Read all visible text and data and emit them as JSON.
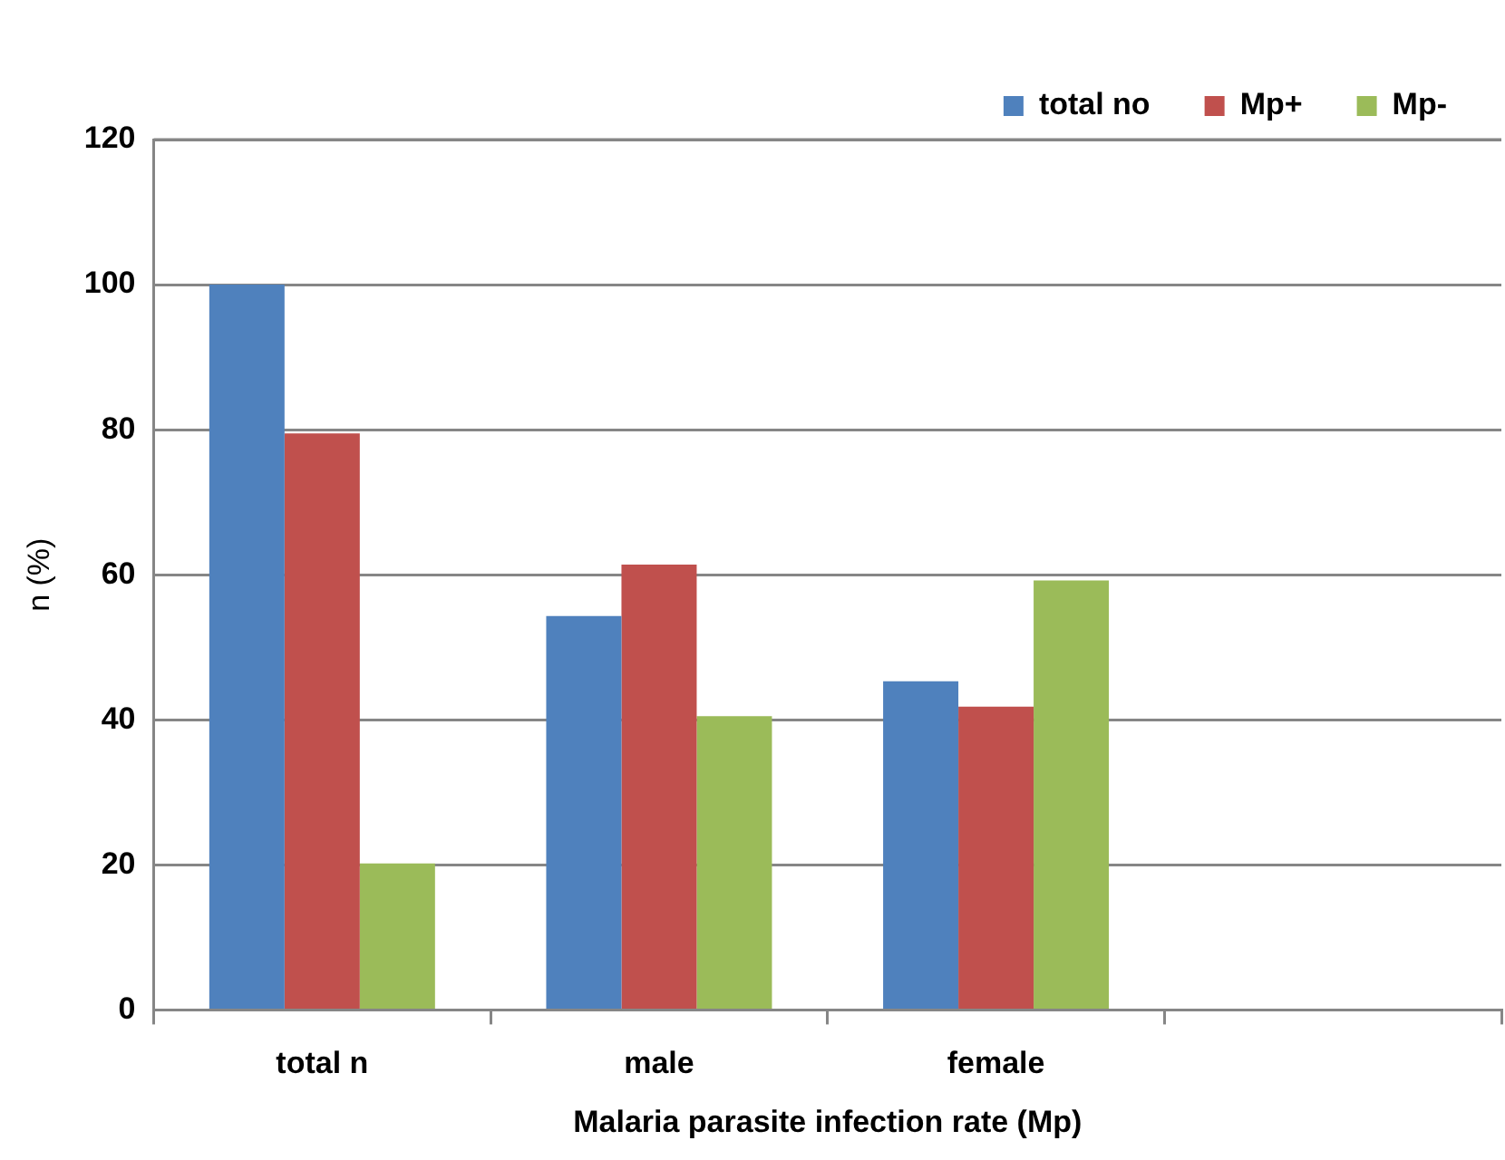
{
  "chart_data": {
    "type": "bar",
    "xlabel": "Malaria parasite infection rate (Mp)",
    "ylabel": "n (%)",
    "categories": [
      "total n",
      "male",
      "female",
      null
    ],
    "series": [
      {
        "name": "total no",
        "color": "#4f81bd",
        "values": [
          100,
          54.3,
          45.3,
          null
        ]
      },
      {
        "name": "Mp+",
        "color": "#c0504d",
        "values": [
          79.5,
          61.4,
          41.8,
          null
        ]
      },
      {
        "name": "Mp-",
        "color": "#9bbb59",
        "values": [
          20.2,
          40.5,
          59.2,
          null
        ]
      }
    ],
    "ylim": [
      0,
      120
    ],
    "yticks": [
      0,
      20,
      40,
      60,
      80,
      100,
      120
    ],
    "grid": "y",
    "legend": "top right"
  }
}
